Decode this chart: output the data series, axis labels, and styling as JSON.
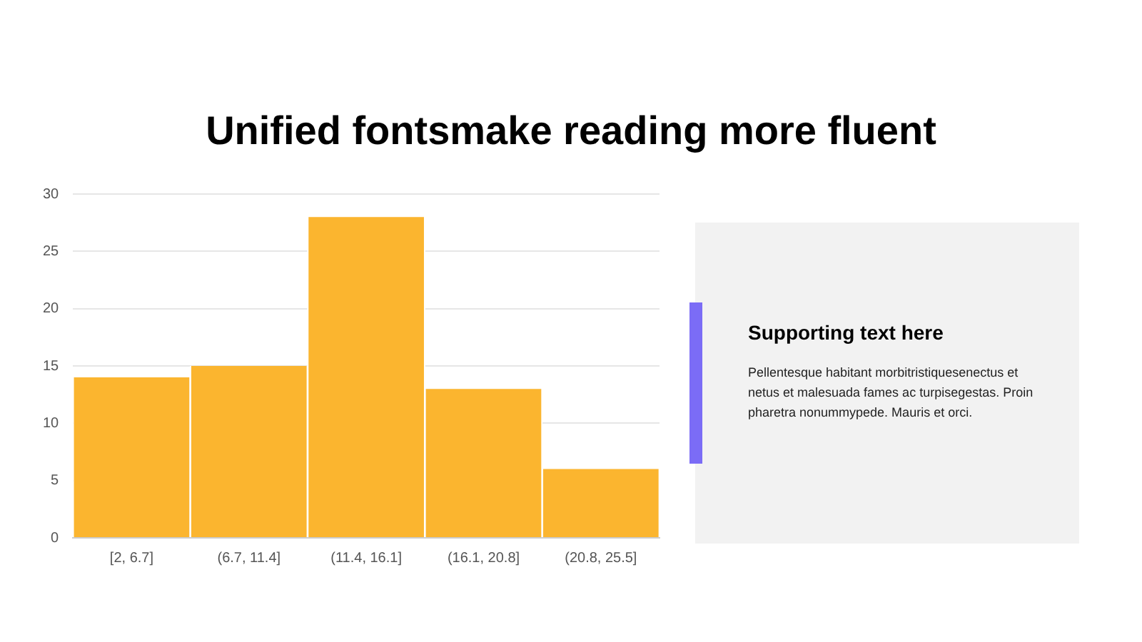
{
  "chart_data": {
    "type": "bar",
    "title": "Unified fontsmake reading more fluent",
    "categories": [
      "[2, 6.7]",
      "(6.7, 11.4]",
      "(11.4, 16.1]",
      "(16.1, 20.8]",
      "(20.8, 25.5]"
    ],
    "values": [
      14,
      15,
      28,
      13,
      6
    ],
    "color": "#fbb52f",
    "ylim": [
      0,
      30
    ],
    "yticks": [
      0,
      5,
      10,
      15,
      20,
      25,
      30
    ],
    "grid": "y",
    "annotations": [
      "Supporting text here",
      "Pellentesque habitant morbitristiquesenectus et netus et malesuada fames ac turpisegestas. Proin pharetra nonummypede.  Mauris et orci."
    ]
  }
}
